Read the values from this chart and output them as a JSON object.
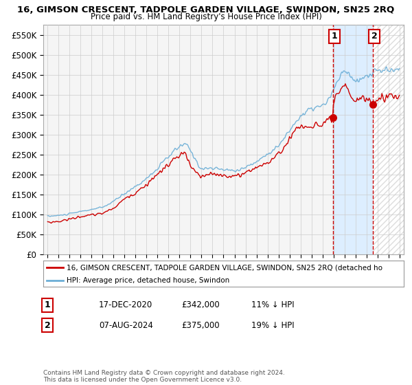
{
  "title": "16, GIMSON CRESCENT, TADPOLE GARDEN VILLAGE, SWINDON, SN25 2RQ",
  "subtitle": "Price paid vs. HM Land Registry's House Price Index (HPI)",
  "ylim": [
    0,
    575000
  ],
  "yticks": [
    0,
    50000,
    100000,
    150000,
    200000,
    250000,
    300000,
    350000,
    400000,
    450000,
    500000,
    550000
  ],
  "ytick_labels": [
    "£0",
    "£50K",
    "£100K",
    "£150K",
    "£200K",
    "£250K",
    "£300K",
    "£350K",
    "£400K",
    "£450K",
    "£500K",
    "£550K"
  ],
  "hpi_color": "#6baed6",
  "price_color": "#cc0000",
  "annotation_1_label": "1",
  "annotation_1_date": "17-DEC-2020",
  "annotation_1_price": "£342,000",
  "annotation_1_hpi": "11% ↓ HPI",
  "annotation_1_year": 2020.958,
  "annotation_1_value": 342000,
  "annotation_2_label": "2",
  "annotation_2_date": "07-AUG-2024",
  "annotation_2_price": "£375,000",
  "annotation_2_hpi": "19% ↓ HPI",
  "annotation_2_year": 2024.583,
  "annotation_2_value": 375000,
  "legend_line1": "16, GIMSON CRESCENT, TADPOLE GARDEN VILLAGE, SWINDON, SN25 2RQ (detached ho",
  "legend_line2": "HPI: Average price, detached house, Swindon",
  "footer": "Contains HM Land Registry data © Crown copyright and database right 2024.\nThis data is licensed under the Open Government Licence v3.0.",
  "background_color": "#ffffff",
  "plot_bg_color": "#f5f5f5",
  "grid_color": "#cccccc",
  "shade_color": "#ddeeff",
  "hatch_color": "#cccccc"
}
